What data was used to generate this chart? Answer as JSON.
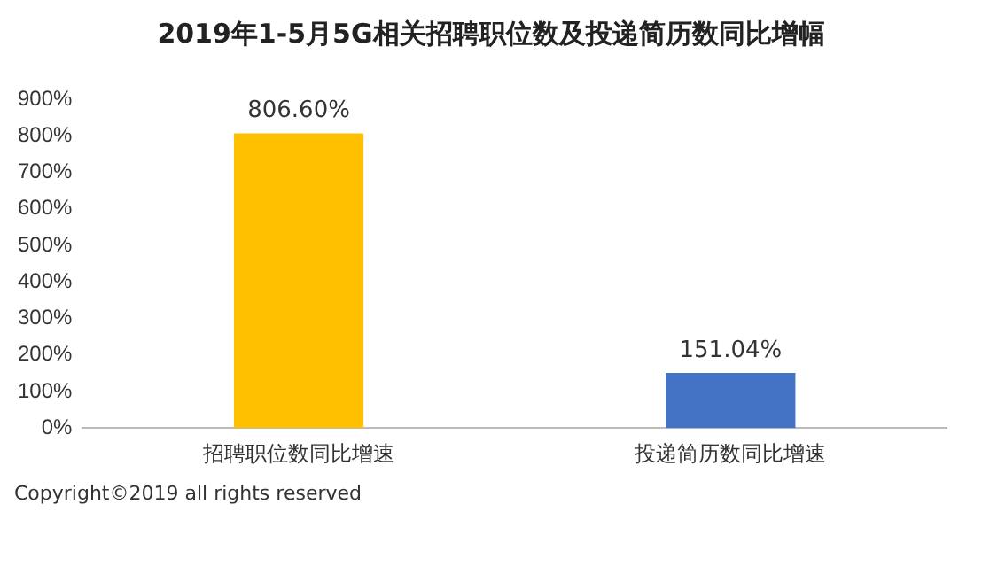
{
  "chart_data": {
    "type": "bar",
    "title": "2019年1-5月5G相关招聘职位数及投递简历数同比增幅",
    "categories": [
      "招聘职位数同比增速",
      "投递简历数同比增速"
    ],
    "values": [
      806.6,
      151.04
    ],
    "colors": [
      "#ffc000",
      "#4472c4"
    ],
    "value_labels": [
      "806.60%",
      "151.04%"
    ],
    "ylim": [
      0,
      900
    ],
    "yticks": [
      {
        "value": 0,
        "label": "0%"
      },
      {
        "value": 100,
        "label": "100%"
      },
      {
        "value": 200,
        "label": "200%"
      },
      {
        "value": 300,
        "label": "300%"
      },
      {
        "value": 400,
        "label": "400%"
      },
      {
        "value": 500,
        "label": "500%"
      },
      {
        "value": 600,
        "label": "600%"
      },
      {
        "value": 700,
        "label": "700%"
      },
      {
        "value": 800,
        "label": "800%"
      },
      {
        "value": 900,
        "label": "900%"
      }
    ],
    "grid": false,
    "legend": false,
    "annotations": [
      "Copyright©2019 all rights reserved"
    ]
  }
}
